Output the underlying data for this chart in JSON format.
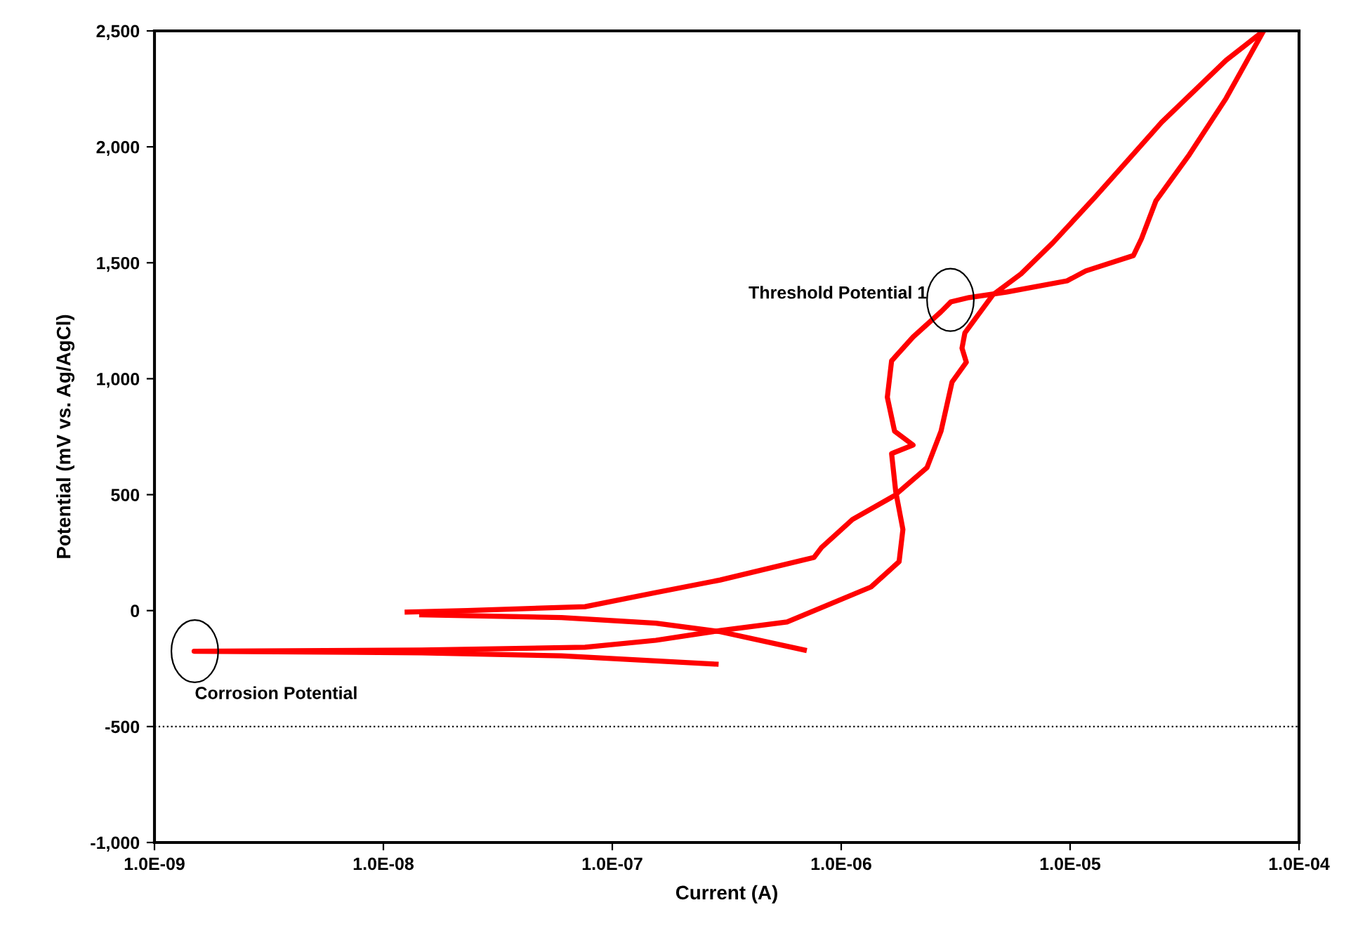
{
  "chart_data": {
    "type": "line",
    "xlabel": "Current (A)",
    "ylabel": "Potential (mV vs. Ag/AgCl)",
    "log": "x",
    "grid": false,
    "legend": false,
    "marker": "none",
    "line_style": "solid",
    "xlim": [
      1e-09,
      0.0001
    ],
    "ylim": [
      -1000,
      2500
    ],
    "xticks": [
      {
        "value": 1e-09,
        "label": "1.0E-09"
      },
      {
        "value": 1e-08,
        "label": "1.0E-08"
      },
      {
        "value": 1e-07,
        "label": "1.0E-07"
      },
      {
        "value": 1e-06,
        "label": "1.0E-06"
      },
      {
        "value": 1e-05,
        "label": "1.0E-05"
      },
      {
        "value": 0.0001,
        "label": "1.0E-04"
      }
    ],
    "yticks": [
      {
        "value": -1000,
        "label": "-1,000"
      },
      {
        "value": -500,
        "label": "-500"
      },
      0,
      500,
      {
        "value": 1000,
        "label": "1,000"
      },
      {
        "value": 1500,
        "label": "1,500"
      },
      {
        "value": 2000,
        "label": "2,000"
      },
      {
        "value": 2500,
        "label": "2,500"
      }
    ],
    "ref_lines": [
      {
        "axis": "y",
        "value": -500,
        "color": "#000000",
        "line_style": "dotted"
      }
    ],
    "annotations": [
      {
        "text": "Threshold Potential 1",
        "x": 3e-06,
        "y": 1340
      },
      {
        "text": "Corrosion Potential",
        "x": 1.5e-09,
        "y": -175
      }
    ],
    "series": [
      {
        "color": "#ff0000",
        "x": [
          2.84e-07,
          6e-08,
          1.47e-08,
          1.49e-09,
          1.47e-08,
          7.6e-08,
          1.55e-07,
          2.96e-07,
          5.8e-07,
          1.35e-06,
          1.79e-06,
          1.86e-06,
          1.73e-06,
          1.66e-06,
          2.06e-06,
          1.71e-06,
          1.59e-06,
          1.66e-06,
          2.06e-06,
          2.73e-06,
          3.01e-06,
          3.62e-06,
          5.3e-06,
          9.7e-06,
          1.17e-05,
          1.89e-05,
          2.05e-05,
          2.37e-05,
          3.32e-05,
          4.8e-05,
          7e-05
        ],
        "values": [
          -231,
          -195,
          -182,
          -175,
          -170,
          -158,
          -128,
          -86,
          -49,
          102,
          211,
          350,
          514,
          677,
          714,
          774,
          920,
          1077,
          1180,
          1289,
          1331,
          1350,
          1374,
          1422,
          1465,
          1531,
          1604,
          1767,
          1967,
          2209,
          2500
        ]
      },
      {
        "color": "#ff0000",
        "x": [
          7e-05,
          4.8e-05,
          2.51e-05,
          1.29e-05,
          8.4e-06,
          6.1e-06,
          4.6e-06,
          3.47e-06,
          3.37e-06,
          3.52e-06,
          3.05e-06,
          2.73e-06,
          2.37e-06,
          1.71e-06,
          1.12e-06,
          8.2e-07,
          7.6e-07,
          2.96e-07,
          1.55e-07,
          7.6e-08,
          2.33e-08,
          1.27e-08
        ],
        "values": [
          2500,
          2373,
          2106,
          1785,
          1586,
          1452,
          1362,
          1198,
          1132,
          1071,
          986,
          774,
          617,
          496,
          393,
          272,
          229,
          132,
          78,
          17,
          0,
          -6
        ]
      },
      {
        "color": "#ff0000",
        "x": [
          1.47e-08,
          6e-08,
          1.55e-07,
          2.96e-07,
          6.9e-07
        ],
        "values": [
          -18,
          -30,
          -54,
          -91,
          -170
        ]
      }
    ]
  }
}
